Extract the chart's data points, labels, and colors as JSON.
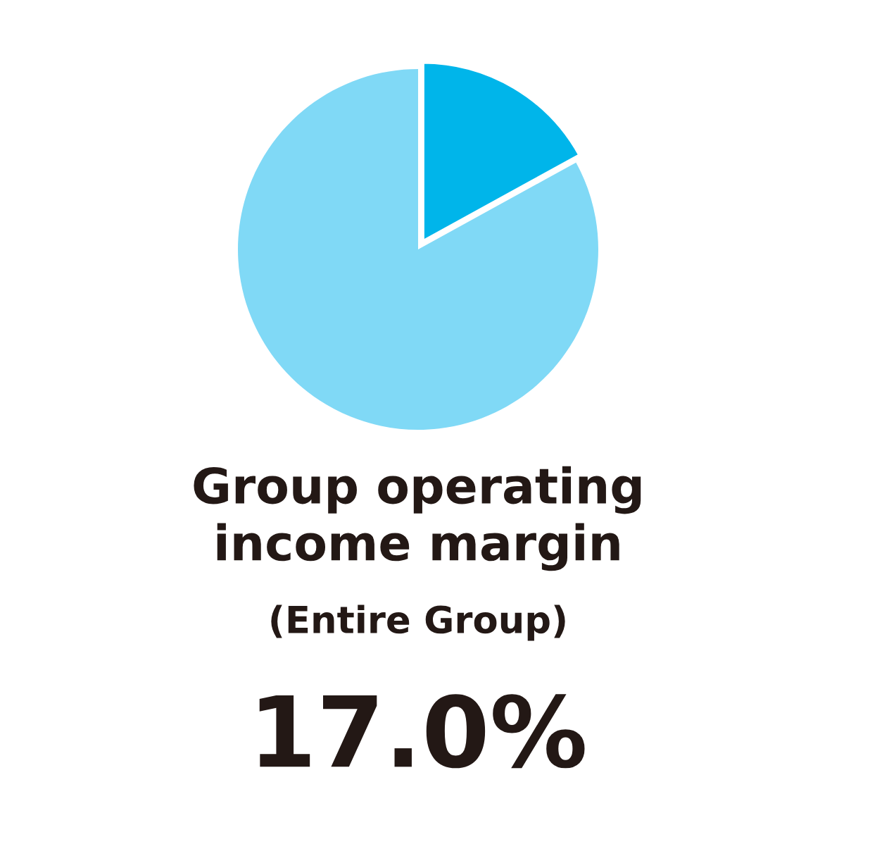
{
  "chart_data": {
    "type": "pie",
    "title": "Group operating\nincome margin",
    "subtitle": "(Entire Group)",
    "categories": [
      null,
      null
    ],
    "values": [
      17.0,
      83.0
    ],
    "colors": [
      "#00b5ea",
      "#80d9f6"
    ],
    "annotations": [
      "17.0%"
    ]
  }
}
